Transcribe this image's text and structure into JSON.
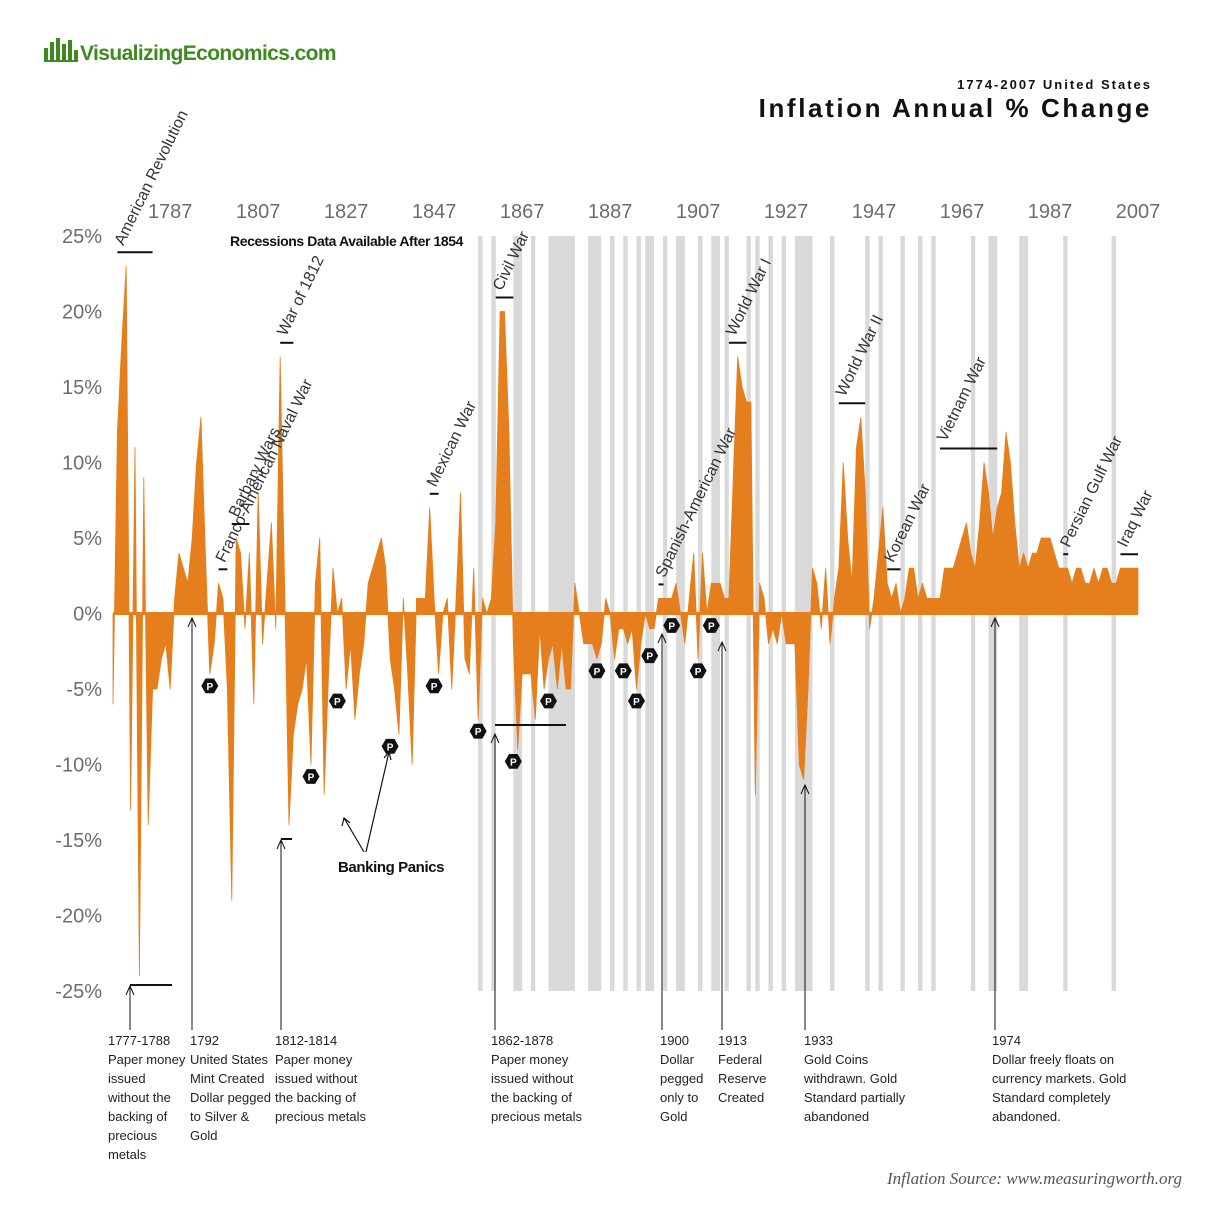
{
  "header": {
    "logo": "VisualizingEconomics.com"
  },
  "chart_data": {
    "type": "area",
    "title": "Inflation Annual % Change",
    "subtitle": "1774-2007 United States",
    "x": [
      1774,
      1775,
      1776,
      1777,
      1778,
      1779,
      1780,
      1781,
      1782,
      1783,
      1784,
      1785,
      1786,
      1787,
      1788,
      1789,
      1790,
      1791,
      1792,
      1793,
      1794,
      1795,
      1796,
      1797,
      1798,
      1799,
      1800,
      1801,
      1802,
      1803,
      1804,
      1805,
      1806,
      1807,
      1808,
      1809,
      1810,
      1811,
      1812,
      1813,
      1814,
      1815,
      1816,
      1817,
      1818,
      1819,
      1820,
      1821,
      1822,
      1823,
      1824,
      1825,
      1826,
      1827,
      1828,
      1829,
      1830,
      1831,
      1832,
      1833,
      1834,
      1835,
      1836,
      1837,
      1838,
      1839,
      1840,
      1841,
      1842,
      1843,
      1844,
      1845,
      1846,
      1847,
      1848,
      1849,
      1850,
      1851,
      1852,
      1853,
      1854,
      1855,
      1856,
      1857,
      1858,
      1859,
      1860,
      1861,
      1862,
      1863,
      1864,
      1865,
      1866,
      1867,
      1868,
      1869,
      1870,
      1871,
      1872,
      1873,
      1874,
      1875,
      1876,
      1877,
      1878,
      1879,
      1880,
      1881,
      1882,
      1883,
      1884,
      1885,
      1886,
      1887,
      1888,
      1889,
      1890,
      1891,
      1892,
      1893,
      1894,
      1895,
      1896,
      1897,
      1898,
      1899,
      1900,
      1901,
      1902,
      1903,
      1904,
      1905,
      1906,
      1907,
      1908,
      1909,
      1910,
      1911,
      1912,
      1913,
      1914,
      1915,
      1916,
      1917,
      1918,
      1919,
      1920,
      1921,
      1922,
      1923,
      1924,
      1925,
      1926,
      1927,
      1928,
      1929,
      1930,
      1931,
      1932,
      1933,
      1934,
      1935,
      1936,
      1937,
      1938,
      1939,
      1940,
      1941,
      1942,
      1943,
      1944,
      1945,
      1946,
      1947,
      1948,
      1949,
      1950,
      1951,
      1952,
      1953,
      1954,
      1955,
      1956,
      1957,
      1958,
      1959,
      1960,
      1961,
      1962,
      1963,
      1964,
      1965,
      1966,
      1967,
      1968,
      1969,
      1970,
      1971,
      1972,
      1973,
      1974,
      1975,
      1976,
      1977,
      1978,
      1979,
      1980,
      1981,
      1982,
      1983,
      1984,
      1985,
      1986,
      1987,
      1988,
      1989,
      1990,
      1991,
      1992,
      1993,
      1994,
      1995,
      1996,
      1997,
      1998,
      1999,
      2000,
      2001,
      2002,
      2003,
      2004,
      2005,
      2006,
      2007
    ],
    "values": [
      -6,
      12,
      18,
      23,
      -13,
      11,
      -24,
      9,
      -14,
      -5,
      -5,
      -3,
      -2,
      -5,
      1,
      4,
      3,
      2,
      5,
      10,
      13,
      4,
      -4,
      -2,
      2,
      1,
      -5,
      -19,
      5,
      4,
      -1,
      4,
      -6,
      8,
      -2,
      2,
      6,
      -1,
      17,
      2,
      -14,
      -8,
      -6,
      -5,
      -3,
      -10,
      2,
      5,
      -12,
      -4,
      3,
      0,
      1,
      -5,
      -2,
      -7,
      -4,
      -2,
      2,
      3,
      4,
      5,
      3,
      -3,
      -5,
      -8,
      1,
      -4,
      -10,
      1,
      1,
      1,
      7,
      1,
      -4,
      0,
      1,
      -5,
      1,
      8,
      -3,
      -4,
      3,
      -7,
      1,
      0,
      1,
      6,
      20,
      20,
      12,
      -2,
      -9,
      -4,
      -4,
      -4,
      -7,
      -1,
      -5,
      -3,
      -2,
      -5,
      -2,
      -5,
      -5,
      2,
      0,
      -2,
      -2,
      -2,
      -3,
      -2,
      1,
      0,
      -3,
      -1,
      -1,
      -2,
      -1,
      -5,
      -2,
      0,
      -1,
      -1,
      1,
      1,
      1,
      1,
      2,
      0,
      -2,
      1,
      4,
      -3,
      4,
      0,
      2,
      2,
      2,
      1,
      1,
      9,
      17,
      15,
      14,
      14,
      -12,
      2,
      1,
      -2,
      -1,
      -2,
      0,
      -2,
      -2,
      -2,
      -10,
      -11,
      -5,
      3,
      2,
      -1,
      3,
      -2,
      1,
      3,
      10,
      5,
      2,
      11,
      13,
      8,
      -1,
      1,
      4,
      7,
      2,
      1,
      2,
      0,
      1,
      3,
      3,
      1,
      2,
      1,
      1,
      1,
      1,
      3,
      3,
      3,
      4,
      5,
      6,
      4,
      3,
      6,
      10,
      8,
      5,
      7,
      8,
      12,
      10,
      6,
      3,
      4,
      3,
      4,
      4,
      5,
      5,
      5,
      4,
      3,
      3,
      3,
      2,
      3,
      3,
      2,
      2,
      3,
      2,
      3,
      3,
      2,
      2,
      3,
      3,
      3,
      3,
      3
    ],
    "color": "#e57f1d",
    "xlim": [
      1774,
      2007
    ],
    "xticks": [
      1787,
      1807,
      1827,
      1847,
      1867,
      1887,
      1907,
      1927,
      1947,
      1967,
      1987,
      2007
    ],
    "ylim": [
      -25,
      25
    ],
    "yticks": [
      {
        "value": 25,
        "label": "25%"
      },
      {
        "value": 20,
        "label": "20%"
      },
      {
        "value": 15,
        "label": "15%"
      },
      {
        "value": 10,
        "label": "10%"
      },
      {
        "value": 5,
        "label": "5%"
      },
      {
        "value": 0,
        "label": "0%"
      },
      {
        "value": -5,
        "label": "-5%"
      },
      {
        "value": -10,
        "label": "-10%"
      },
      {
        "value": -15,
        "label": "-15%"
      },
      {
        "value": -20,
        "label": "-20%"
      },
      {
        "value": -25,
        "label": "-25%"
      }
    ],
    "recession_note": "Recessions Data Available After 1854",
    "recession_color": "#d9d9d9",
    "recessions": [
      [
        1857,
        1858
      ],
      [
        1860,
        1861
      ],
      [
        1865,
        1867
      ],
      [
        1869,
        1870
      ],
      [
        1873,
        1879
      ],
      [
        1882,
        1885
      ],
      [
        1887,
        1888
      ],
      [
        1890,
        1891
      ],
      [
        1893,
        1894
      ],
      [
        1895,
        1897
      ],
      [
        1899,
        1900
      ],
      [
        1902,
        1904
      ],
      [
        1907,
        1908
      ],
      [
        1910,
        1912
      ],
      [
        1913,
        1914
      ],
      [
        1918,
        1919
      ],
      [
        1920,
        1921
      ],
      [
        1923,
        1924
      ],
      [
        1926,
        1927
      ],
      [
        1929,
        1933
      ],
      [
        1937,
        1938
      ],
      [
        1945,
        1946
      ],
      [
        1948,
        1949
      ],
      [
        1953,
        1954
      ],
      [
        1957,
        1958
      ],
      [
        1960,
        1961
      ],
      [
        1969,
        1970
      ],
      [
        1973,
        1975
      ],
      [
        1980,
        1981
      ],
      [
        1981,
        1982
      ],
      [
        1990,
        1991
      ],
      [
        2001,
        2002
      ]
    ],
    "wars": [
      {
        "label": "American Revolution",
        "start": 1775,
        "end": 1783
      },
      {
        "label": "Franco-American Naval War",
        "start": 1798,
        "end": 1800
      },
      {
        "label": "Barbary Wars",
        "start": 1801,
        "end": 1805
      },
      {
        "label": "War of 1812",
        "start": 1812,
        "end": 1815
      },
      {
        "label": "Mexican War",
        "start": 1846,
        "end": 1848
      },
      {
        "label": "Civil War",
        "start": 1861,
        "end": 1865
      },
      {
        "label": "Spanish-American War",
        "start": 1898,
        "end": 1899
      },
      {
        "label": "World War I",
        "start": 1914,
        "end": 1918
      },
      {
        "label": "World War II",
        "start": 1939,
        "end": 1945
      },
      {
        "label": "Korean War",
        "start": 1950,
        "end": 1953
      },
      {
        "label": "Vietnam War",
        "start": 1962,
        "end": 1975
      },
      {
        "label": "Persian Gulf War",
        "start": 1990,
        "end": 1991
      },
      {
        "label": "Iraq War",
        "start": 2003,
        "end": 2007
      }
    ],
    "panics": {
      "label": "P",
      "years": [
        1796,
        1819,
        1825,
        1837,
        1847,
        1857,
        1865,
        1873,
        1884,
        1890,
        1893,
        1896,
        1901,
        1907,
        1910
      ]
    },
    "panics_annotation": "Banking Panics",
    "notes": [
      {
        "title": "1777-1788",
        "lines": [
          "Paper money",
          "issued",
          "without the",
          "backing of",
          "precious",
          "metals"
        ]
      },
      {
        "title": "1792",
        "lines": [
          "United States",
          "Mint Created",
          "Dollar pegged",
          "to Silver &",
          "Gold"
        ]
      },
      {
        "title": "1812-1814",
        "lines": [
          "Paper money",
          "issued without",
          "the backing of",
          "precious metals"
        ]
      },
      {
        "title": "1862-1878",
        "lines": [
          "Paper money",
          "issued without",
          "the backing of",
          "precious metals"
        ]
      },
      {
        "title": "1900",
        "lines": [
          "Dollar",
          "pegged",
          "only to",
          "Gold"
        ]
      },
      {
        "title": "1913",
        "lines": [
          "Federal",
          "Reserve",
          "Created"
        ]
      },
      {
        "title": "1933",
        "lines": [
          "Gold Coins",
          "withdrawn. Gold",
          "Standard partially",
          "abandoned"
        ]
      },
      {
        "title": "1974",
        "lines": [
          "Dollar freely floats on",
          "currency markets. Gold",
          "Standard completely",
          "abandoned."
        ]
      }
    ],
    "source": "Inflation Source: www.measuringworth.org"
  }
}
